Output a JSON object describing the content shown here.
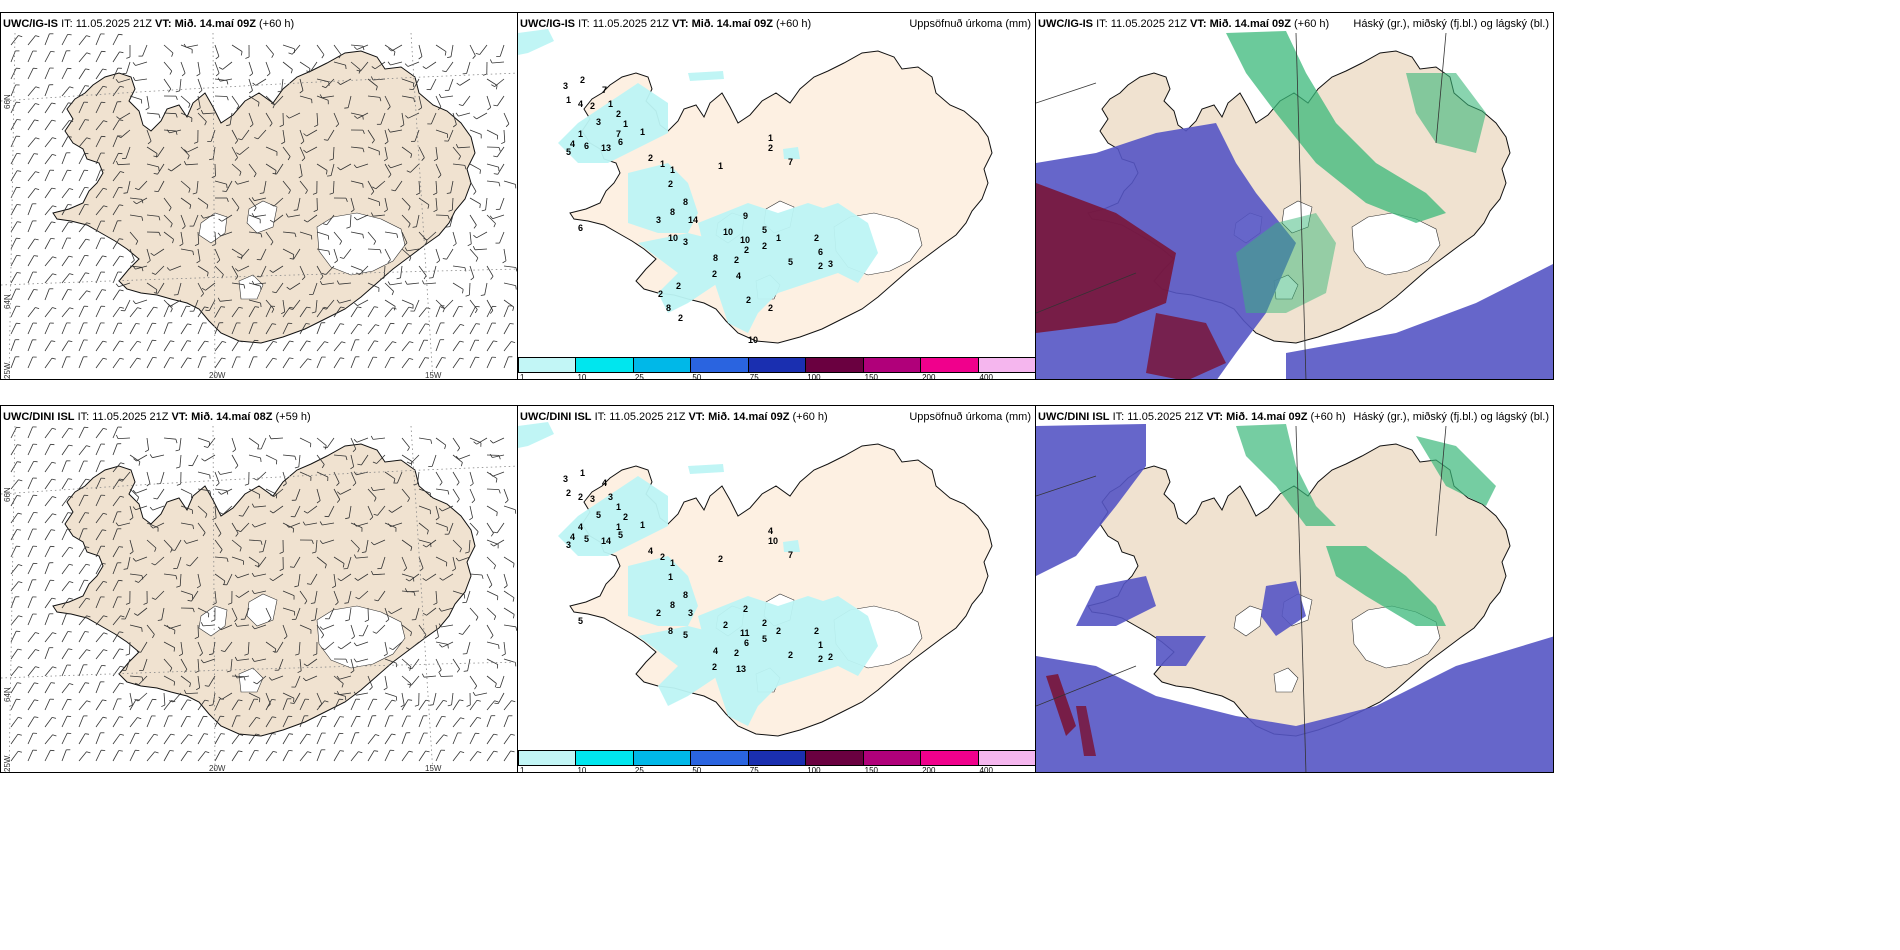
{
  "rows": [
    {
      "wind": {
        "model": "UWC/IG-IS",
        "it": "IT: 11.05.2025 21Z",
        "vt": "VT: Mið. 14.maí 09Z",
        "lead": "(+60 h)"
      },
      "precip": {
        "model": "UWC/IG-IS",
        "it": "IT: 11.05.2025 21Z",
        "vt": "VT: Mið. 14.maí 09Z",
        "lead": "(+60 h)",
        "right": "Uppsöfnuð úrkoma (mm)"
      },
      "cloud": {
        "model": "UWC/IG-IS",
        "it": "IT: 11.05.2025 21Z",
        "vt": "VT: Mið. 14.maí 09Z",
        "lead": "(+60 h)",
        "right": "Háský (gr.), miðský (fj.bl.) og lágský (bl.)"
      },
      "rain_labels": [
        "3",
        "1",
        "2",
        "4",
        "2",
        "7",
        "1",
        "2",
        "1",
        "3",
        "7",
        "1",
        "4",
        "5",
        "6",
        "13",
        "6",
        "1",
        "2",
        "1",
        "1",
        "2",
        "1",
        "1",
        "2",
        "7",
        "8",
        "8",
        "3",
        "14",
        "6",
        "10",
        "3",
        "9",
        "10",
        "10",
        "5",
        "2",
        "1",
        "2",
        "2",
        "8",
        "2",
        "5",
        "2",
        "6",
        "2",
        "3",
        "4",
        "2",
        "2",
        "8",
        "2",
        "2",
        "2",
        "10"
      ]
    },
    {
      "wind": {
        "model": "UWC/DINI ISL",
        "it": "IT: 11.05.2025 21Z",
        "vt": "VT: Mið. 14.maí 08Z",
        "lead": "(+59 h)"
      },
      "precip": {
        "model": "UWC/DINI ISL",
        "it": "IT: 11.05.2025 21Z",
        "vt": "VT: Mið. 14.maí 09Z",
        "lead": "(+60 h)",
        "right": "Uppsöfnuð úrkoma (mm)"
      },
      "cloud": {
        "model": "UWC/DINI ISL",
        "it": "IT: 11.05.2025 21Z",
        "vt": "VT: Mið. 14.maí 09Z",
        "lead": "(+60 h)",
        "right": "Háský (gr.), miðský (fj.bl.) og lágský (bl.)"
      },
      "rain_labels": [
        "3",
        "2",
        "1",
        "2",
        "3",
        "4",
        "3",
        "1",
        "2",
        "5",
        "1",
        "4",
        "4",
        "3",
        "5",
        "14",
        "5",
        "1",
        "4",
        "2",
        "1",
        "1",
        "2",
        "4",
        "10",
        "7",
        "8",
        "8",
        "2",
        "3",
        "5",
        "8",
        "5",
        "2",
        "2",
        "11",
        "2",
        "5",
        "2",
        "6",
        "2",
        "4",
        "2",
        "2",
        "2",
        "1",
        "2",
        "2",
        "13"
      ]
    }
  ],
  "grid_labels": {
    "lat66": "66N",
    "lat64": "64N",
    "lon25": "25W",
    "lon20": "20W",
    "lon15": "15W"
  },
  "colorbar": {
    "ticks": [
      "1",
      "10",
      "25",
      "50",
      "75",
      "100",
      "150",
      "200",
      "400"
    ],
    "colors": [
      "#c2f6f6",
      "#00e6ee",
      "#00b8e8",
      "#2a64e0",
      "#1a2fb0",
      "#6a0040",
      "#b0007a",
      "#f0008c",
      "#f5b6ee"
    ]
  },
  "colors": {
    "land": "#f0e2d0",
    "land_precip": "#fdf0e2",
    "rain": "#bdf5f5",
    "high_cloud": "#3ab87a",
    "mid_cloud": "#7a1030",
    "low_cloud": "#5555c4"
  }
}
